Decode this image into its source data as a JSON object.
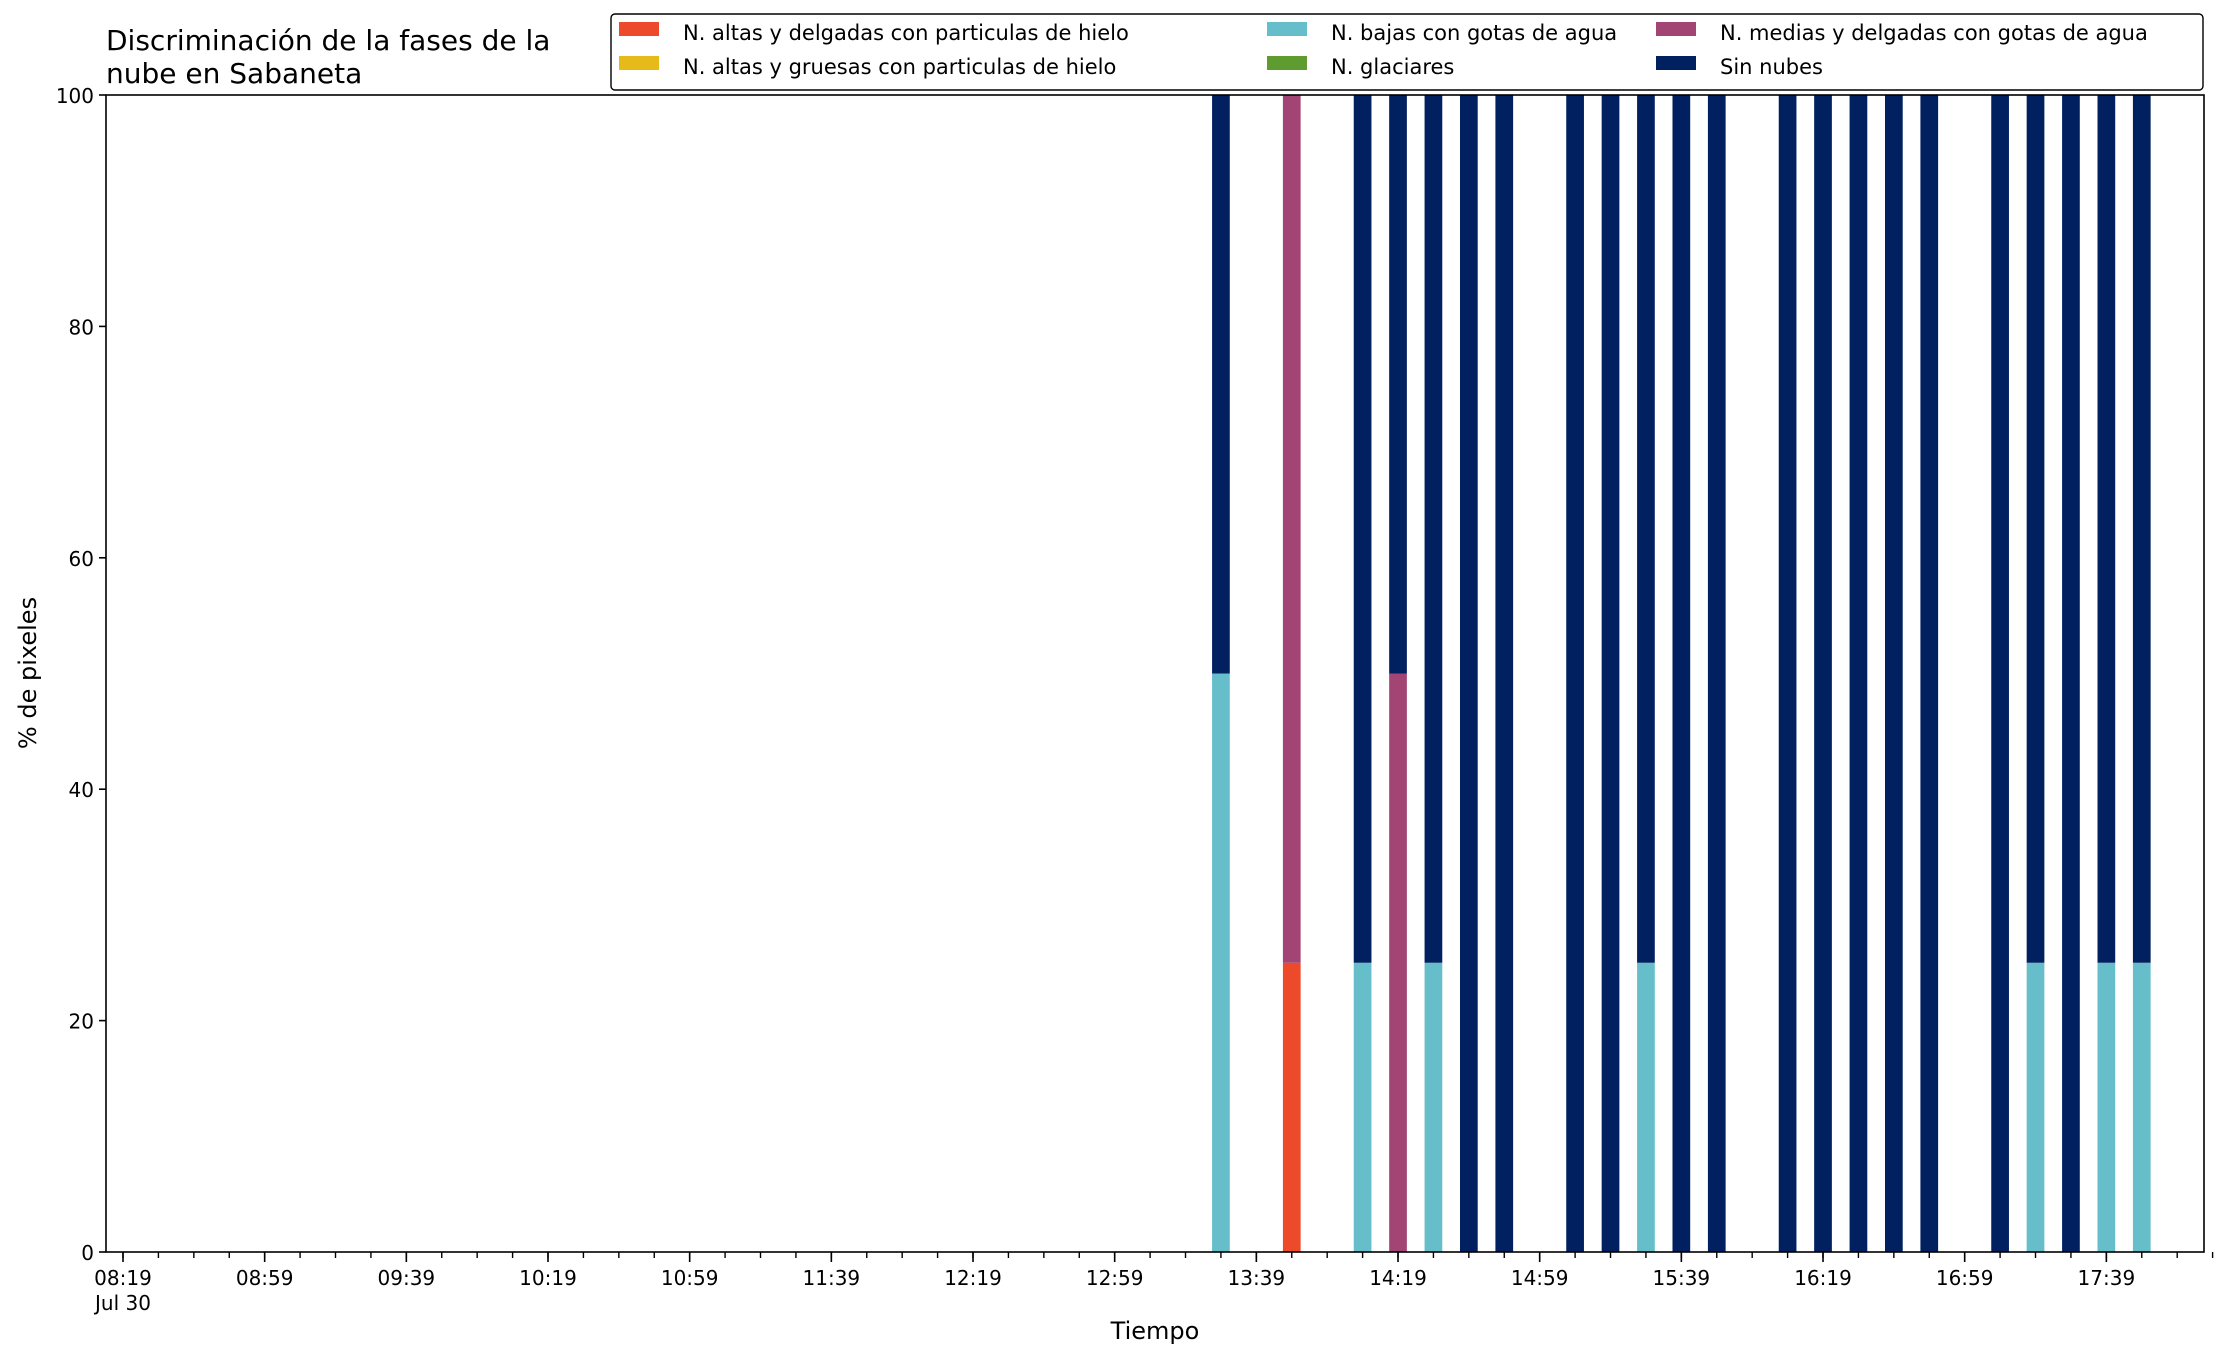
{
  "chart_data": {
    "type": "bar",
    "stacked": true,
    "title_lines": [
      "Discriminación de la fases de la",
      "nube en Sabaneta"
    ],
    "xlabel": "Tiempo",
    "ylabel": "% de pixeles",
    "ylim": [
      0,
      100
    ],
    "yticks": [
      "0",
      "20",
      "40",
      "60",
      "80",
      "100"
    ],
    "x_start": "08:19",
    "x_end": "18:09",
    "x_tick_labels": [
      "08:19",
      "08:59",
      "09:39",
      "10:19",
      "10:59",
      "11:39",
      "12:19",
      "12:59",
      "13:39",
      "14:19",
      "14:59",
      "15:39",
      "16:19",
      "16:59",
      "17:39"
    ],
    "x_tick_sublabel": "Jul 30",
    "minor_tick_step_minutes": 10,
    "bar_width_minutes": 5,
    "grid": false,
    "legend_position": "top-right",
    "legend_ncol": 3,
    "series": [
      {
        "name": "N. altas y delgadas con particulas de hielo",
        "color": "#EC4A2A"
      },
      {
        "name": "N. altas y gruesas con particulas de hielo",
        "color": "#E6BA19"
      },
      {
        "name": "N. bajas con gotas de agua",
        "color": "#66BECA"
      },
      {
        "name": "N. glaciares",
        "color": "#5F9C2F"
      },
      {
        "name": "N. medias y delgadas con gotas de agua",
        "color": "#A24575"
      },
      {
        "name": "Sin nubes",
        "color": "#00205F"
      }
    ],
    "series_keys": [
      "altas_delgadas",
      "altas_gruesas",
      "bajas",
      "glaciares",
      "medias",
      "sin_nubes"
    ],
    "data": [
      {
        "time": "13:29",
        "bajas": 50,
        "sin_nubes": 50
      },
      {
        "time": "13:49",
        "altas_delgadas": 25,
        "medias": 75
      },
      {
        "time": "14:09",
        "bajas": 25,
        "sin_nubes": 75
      },
      {
        "time": "14:19",
        "medias": 50,
        "sin_nubes": 50
      },
      {
        "time": "14:29",
        "bajas": 25,
        "sin_nubes": 75
      },
      {
        "time": "14:39",
        "sin_nubes": 100
      },
      {
        "time": "14:49",
        "sin_nubes": 100
      },
      {
        "time": "15:09",
        "sin_nubes": 100
      },
      {
        "time": "15:19",
        "sin_nubes": 100
      },
      {
        "time": "15:29",
        "bajas": 25,
        "sin_nubes": 75
      },
      {
        "time": "15:39",
        "sin_nubes": 100
      },
      {
        "time": "15:49",
        "sin_nubes": 100
      },
      {
        "time": "16:09",
        "sin_nubes": 100
      },
      {
        "time": "16:19",
        "sin_nubes": 100
      },
      {
        "time": "16:29",
        "sin_nubes": 100
      },
      {
        "time": "16:39",
        "sin_nubes": 100
      },
      {
        "time": "16:49",
        "sin_nubes": 100
      },
      {
        "time": "17:09",
        "sin_nubes": 100
      },
      {
        "time": "17:19",
        "bajas": 25,
        "sin_nubes": 75
      },
      {
        "time": "17:29",
        "sin_nubes": 100
      },
      {
        "time": "17:39",
        "bajas": 25,
        "sin_nubes": 75
      },
      {
        "time": "17:49",
        "bajas": 25,
        "sin_nubes": 75
      }
    ]
  }
}
